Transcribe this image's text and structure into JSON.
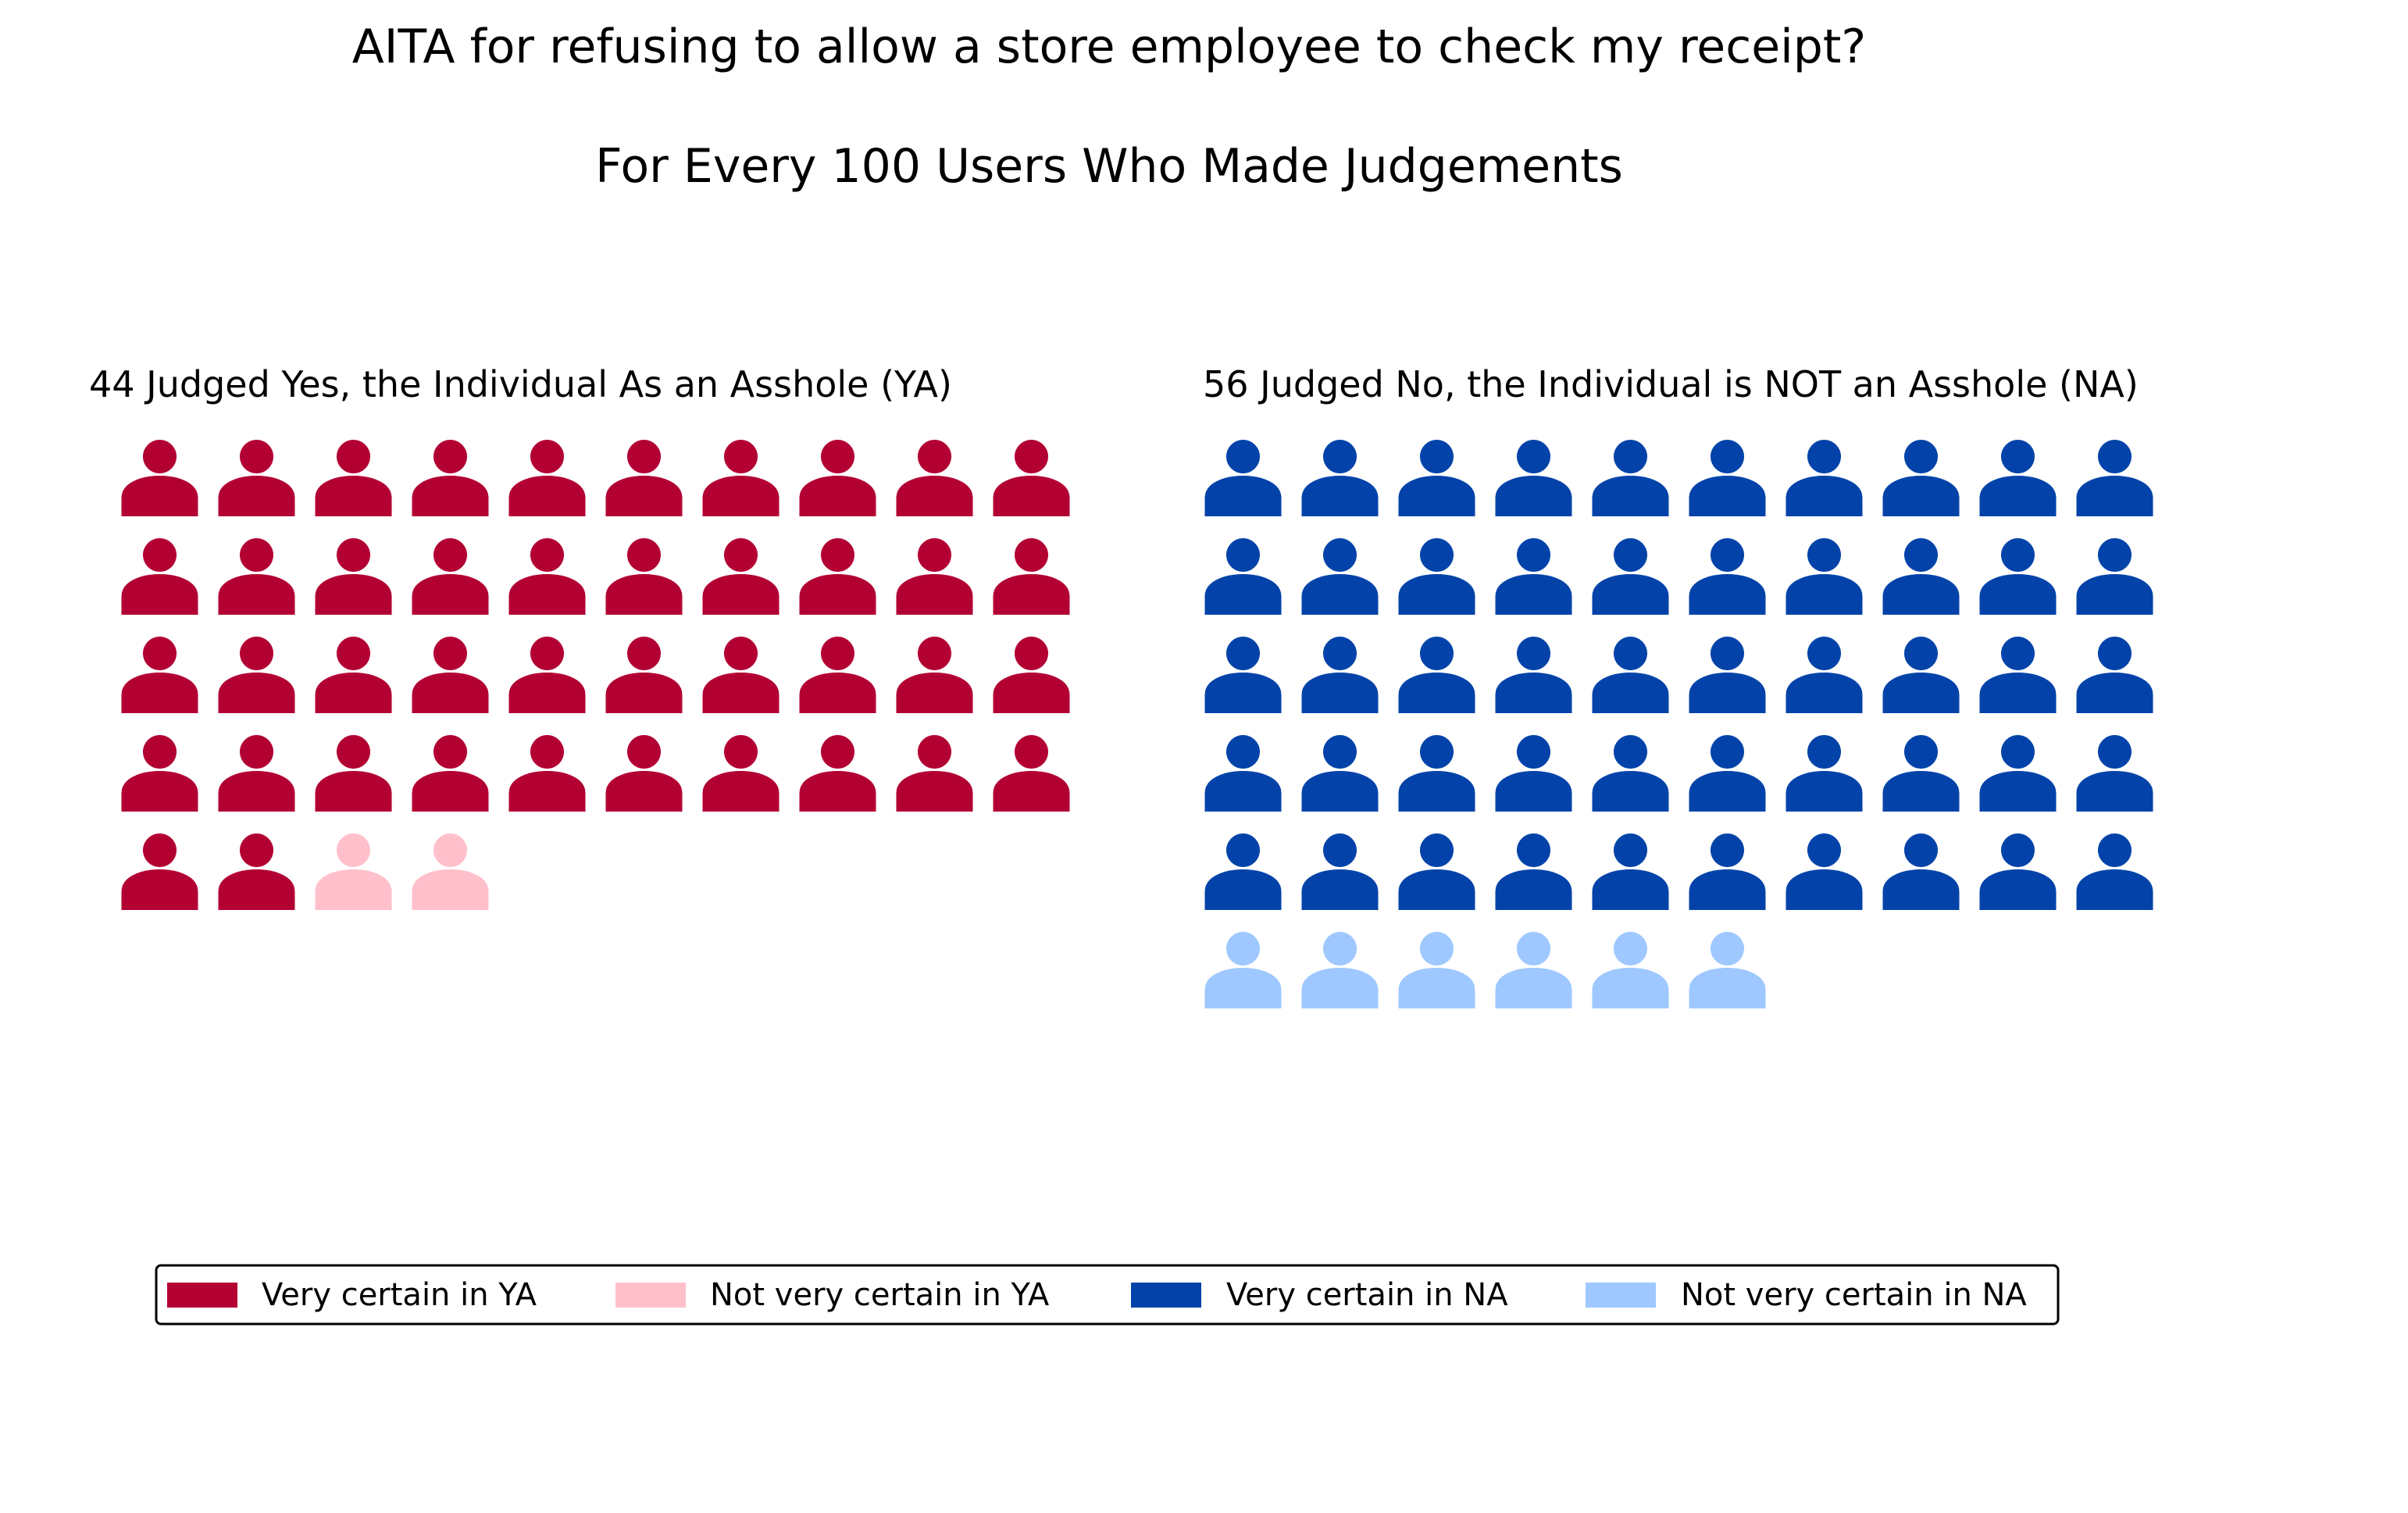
{
  "chart_data": {
    "type": "pictograph",
    "title": "AITA for refusing to allow a store employee to check my receipt?",
    "subtitle": "For Every 100 Users Who Made Judgements",
    "icon": "person-icon",
    "icons_per_row": 10,
    "total": 100,
    "groups": [
      {
        "label": "44 Judged Yes, the Individual As an Asshole (YA)",
        "segments": [
          {
            "name": "Very certain in YA",
            "count": 42,
            "color": "#b30033"
          },
          {
            "name": "Not very certain in YA",
            "count": 2,
            "color": "#ffc0cb"
          }
        ]
      },
      {
        "label": "56 Judged No, the Individual is NOT an Asshole (NA)",
        "segments": [
          {
            "name": "Very certain in NA",
            "count": 50,
            "color": "#0343a9"
          },
          {
            "name": "Not very certain in NA",
            "count": 6,
            "color": "#9ec8ff"
          }
        ]
      }
    ],
    "legend": {
      "placement": "bottom",
      "entries": [
        {
          "label": "Very certain in YA",
          "color": "#b30033"
        },
        {
          "label": "Not very certain in YA",
          "color": "#ffc0cb"
        },
        {
          "label": "Very certain in NA",
          "color": "#0343a9"
        },
        {
          "label": "Not very certain in NA",
          "color": "#9ec8ff"
        }
      ]
    }
  }
}
